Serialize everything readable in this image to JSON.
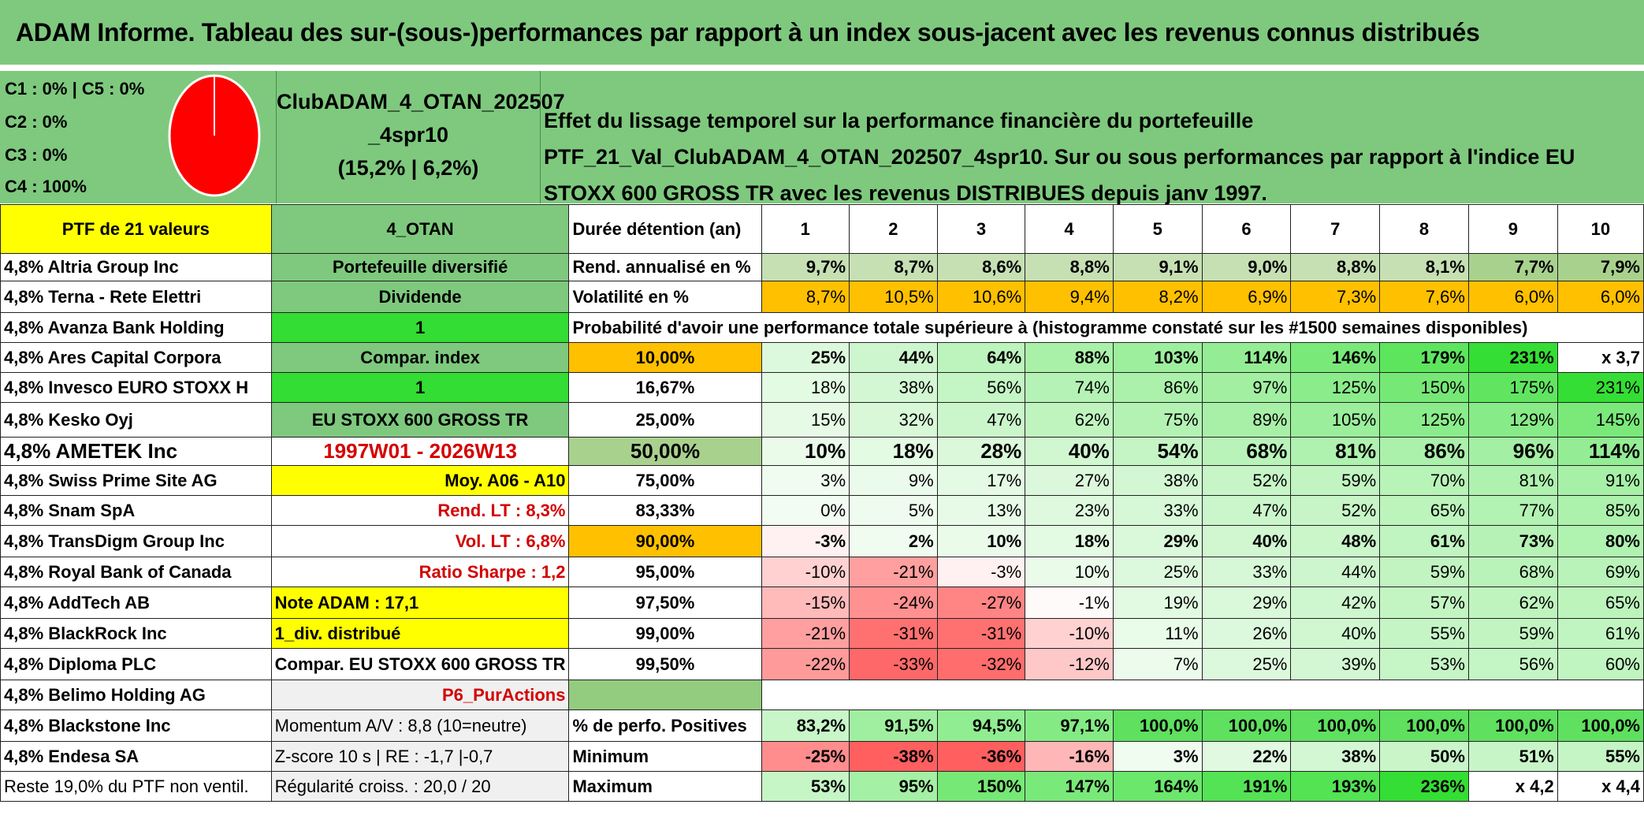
{
  "title": "ADAM Informe. Tableau des sur-(sous-)performances par rapport à un index sous-jacent avec les revenus connus distribués",
  "allocation": [
    "C1 : 0% | C5 : 0%",
    "C2 : 0%",
    "C3 : 0%",
    "C4 : 100%"
  ],
  "allocation_pie": [
    {
      "label": "C4",
      "value": 100,
      "color": "#ff0000"
    }
  ],
  "club": {
    "name_line1": "ClubADAM_4_OTAN_202507",
    "name_line2": "_4spr10",
    "perf": "(15,2% | 6,2%)"
  },
  "description": "Effet du lissage temporel sur la performance financière du portefeuille PTF_21_Val_ClubADAM_4_OTAN_202507_4spr10. Sur ou sous performances par rapport à l'indice EU STOXX 600 GROSS TR avec les revenus DISTRIBUES depuis janv 1997.",
  "portfolio_header": "PTF de 21 valeurs",
  "holdings": [
    "4,8% Altria Group Inc",
    "4,8% Terna - Rete Elettri",
    "4,8% Avanza Bank Holding",
    "4,8% Ares Capital Corpora",
    "4,8% Invesco EURO STOXX H",
    "4,8% Kesko Oyj",
    "4,8% AMETEK Inc",
    "4,8% Swiss Prime Site AG",
    "4,8% Snam SpA",
    "4,8% TransDigm Group Inc",
    "4,8% Royal Bank of Canada",
    "4,8% AddTech AB",
    "4,8% BlackRock Inc",
    "4,8% Diploma PLC",
    "4,8% Belimo Holding AG",
    "4,8% Blackstone Inc",
    "4,8% Endesa SA",
    "Reste 19,0% du PTF non ventil."
  ],
  "info": [
    "4_OTAN",
    "Portefeuille diversifié",
    "Dividende",
    "1",
    "Compar. index",
    "1",
    "EU STOXX 600 GROSS TR",
    "1997W01 - 2026W13",
    "Moy. A06 - A10",
    "Rend. LT : 8,3%",
    "Vol. LT : 6,8%",
    "Ratio Sharpe : 1,2",
    "Note ADAM : 17,1",
    "1_div. distribué",
    "Compar. EU STOXX 600 GROSS TR",
    "P6_PurActions",
    "Momentum A/V : 8,8 (10=neutre)",
    "Z-score 10 s | RE : -1,7 |-0,7",
    "Régularité croiss. : 20,0 / 20"
  ],
  "duration_label": "Durée détention (an)",
  "years": [
    "1",
    "2",
    "3",
    "4",
    "5",
    "6",
    "7",
    "8",
    "9",
    "10"
  ],
  "rend_label": "Rend. annualisé en %",
  "rend": [
    "9,7%",
    "8,7%",
    "8,6%",
    "8,8%",
    "9,1%",
    "9,0%",
    "8,8%",
    "8,1%",
    "7,7%",
    "7,9%"
  ],
  "vol_label": "Volatilité en %",
  "vol": [
    "8,7%",
    "10,5%",
    "10,6%",
    "9,4%",
    "8,2%",
    "6,9%",
    "7,3%",
    "7,6%",
    "6,0%",
    "6,0%"
  ],
  "prob_header": "Probabilité d'avoir une performance totale supérieure à (histogramme constaté sur les #1500 semaines disponibles)",
  "quantiles": [
    {
      "q": "10,00%",
      "v": [
        "25%",
        "44%",
        "64%",
        "88%",
        "103%",
        "114%",
        "146%",
        "179%",
        "231%",
        "x 3,7"
      ]
    },
    {
      "q": "16,67%",
      "v": [
        "18%",
        "38%",
        "56%",
        "74%",
        "86%",
        "97%",
        "125%",
        "150%",
        "175%",
        "231%"
      ]
    },
    {
      "q": "25,00%",
      "v": [
        "15%",
        "32%",
        "47%",
        "62%",
        "75%",
        "89%",
        "105%",
        "125%",
        "129%",
        "145%"
      ]
    },
    {
      "q": "50,00%",
      "v": [
        "10%",
        "18%",
        "28%",
        "40%",
        "54%",
        "68%",
        "81%",
        "86%",
        "96%",
        "114%"
      ]
    },
    {
      "q": "75,00%",
      "v": [
        "3%",
        "9%",
        "17%",
        "27%",
        "38%",
        "52%",
        "59%",
        "70%",
        "81%",
        "91%"
      ]
    },
    {
      "q": "83,33%",
      "v": [
        "0%",
        "5%",
        "13%",
        "23%",
        "33%",
        "47%",
        "52%",
        "65%",
        "77%",
        "85%"
      ]
    },
    {
      "q": "90,00%",
      "v": [
        "-3%",
        "2%",
        "10%",
        "18%",
        "29%",
        "40%",
        "48%",
        "61%",
        "73%",
        "80%"
      ]
    },
    {
      "q": "95,00%",
      "v": [
        "-10%",
        "-21%",
        "-3%",
        "10%",
        "25%",
        "33%",
        "44%",
        "59%",
        "68%",
        "69%"
      ]
    },
    {
      "q": "97,50%",
      "v": [
        "-15%",
        "-24%",
        "-27%",
        "-1%",
        "19%",
        "29%",
        "42%",
        "57%",
        "62%",
        "65%"
      ]
    },
    {
      "q": "99,00%",
      "v": [
        "-21%",
        "-31%",
        "-31%",
        "-10%",
        "11%",
        "26%",
        "40%",
        "55%",
        "59%",
        "61%"
      ]
    },
    {
      "q": "99,50%",
      "v": [
        "-22%",
        "-33%",
        "-32%",
        "-12%",
        "7%",
        "25%",
        "39%",
        "53%",
        "56%",
        "60%"
      ]
    }
  ],
  "pos_label": "% de perfo. Positives",
  "pos": [
    "83,2%",
    "91,5%",
    "94,5%",
    "97,1%",
    "100,0%",
    "100,0%",
    "100,0%",
    "100,0%",
    "100,0%",
    "100,0%"
  ],
  "min_label": "Minimum",
  "min": [
    "-25%",
    "-38%",
    "-36%",
    "-16%",
    "3%",
    "22%",
    "38%",
    "50%",
    "51%",
    "55%"
  ],
  "max_label": "Maximum",
  "max": [
    "53%",
    "95%",
    "150%",
    "147%",
    "164%",
    "191%",
    "193%",
    "236%",
    "x 4,2",
    "x 4,4"
  ]
}
